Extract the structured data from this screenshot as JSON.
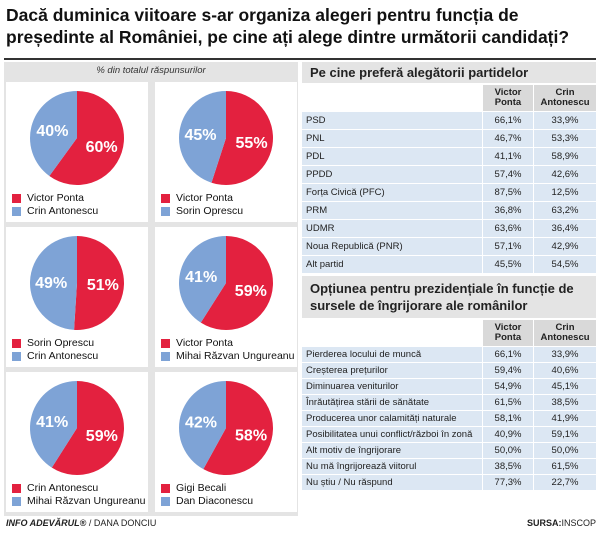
{
  "title": "Dacă duminica viitoare s-ar organiza alegeri pentru funcția de președinte al României, pe cine ați alege dintre următorii candidați?",
  "subtitle": "% din totalul răspunsurilor",
  "chart_data": [
    {
      "type": "pie",
      "categories": [
        "Victor Ponta",
        "Crin Antonescu"
      ],
      "values": [
        60,
        40
      ],
      "value_labels": [
        "60%",
        "40%"
      ],
      "colors": [
        "#e3213f",
        "#7ea3d6"
      ]
    },
    {
      "type": "pie",
      "categories": [
        "Victor Ponta",
        "Sorin Oprescu"
      ],
      "values": [
        55,
        45
      ],
      "value_labels": [
        "55%",
        "45%"
      ],
      "colors": [
        "#e3213f",
        "#7ea3d6"
      ]
    },
    {
      "type": "pie",
      "categories": [
        "Sorin Oprescu",
        "Crin Antonescu"
      ],
      "values": [
        51,
        49
      ],
      "value_labels": [
        "51%",
        "49%"
      ],
      "colors": [
        "#e3213f",
        "#7ea3d6"
      ]
    },
    {
      "type": "pie",
      "categories": [
        "Victor Ponta",
        "Mihai Răzvan Ungureanu"
      ],
      "values": [
        59,
        41
      ],
      "value_labels": [
        "59%",
        "41%"
      ],
      "colors": [
        "#e3213f",
        "#7ea3d6"
      ]
    },
    {
      "type": "pie",
      "categories": [
        "Crin Antonescu",
        "Mihai Răzvan Ungureanu"
      ],
      "values": [
        59,
        41
      ],
      "value_labels": [
        "59%",
        "41%"
      ],
      "colors": [
        "#e3213f",
        "#7ea3d6"
      ]
    },
    {
      "type": "pie",
      "categories": [
        "Gigi Becali",
        "Dan Diaconescu"
      ],
      "values": [
        58,
        42
      ],
      "value_labels": [
        "58%",
        "42%"
      ],
      "colors": [
        "#e3213f",
        "#7ea3d6"
      ]
    }
  ],
  "tables": [
    {
      "title": "Pe cine preferă alegătorii partidelor",
      "columns": [
        "Victor Ponta",
        "Crin Antonescu"
      ],
      "rows": [
        [
          "PSD",
          "66,1%",
          "33,9%"
        ],
        [
          "PNL",
          "46,7%",
          "53,3%"
        ],
        [
          "PDL",
          "41,1%",
          "58,9%"
        ],
        [
          "PPDD",
          "57,4%",
          "42,6%"
        ],
        [
          "Forța Civică (PFC)",
          "87,5%",
          "12,5%"
        ],
        [
          "PRM",
          "36,8%",
          "63,2%"
        ],
        [
          "UDMR",
          "63,6%",
          "36,4%"
        ],
        [
          "Noua Republică (PNR)",
          "57,1%",
          "42,9%"
        ],
        [
          "Alt partid",
          "45,5%",
          "54,5%"
        ]
      ]
    },
    {
      "title": "Opțiunea pentru prezidențiale în funcție de sursele de îngrijorare ale românilor",
      "columns": [
        "Victor Ponta",
        "Crin Antonescu"
      ],
      "rows": [
        [
          "Pierderea locului de muncă",
          "66,1%",
          "33,9%"
        ],
        [
          "Creșterea prețurilor",
          "59,4%",
          "40,6%"
        ],
        [
          "Diminuarea veniturilor",
          "54,9%",
          "45,1%"
        ],
        [
          "Înrăutățirea stării de sănătate",
          "61,5%",
          "38,5%"
        ],
        [
          "Producerea unor calamități naturale",
          "58,1%",
          "41,9%"
        ],
        [
          "Posibilitatea unui conflict/război în zonă",
          "40,9%",
          "59,1%"
        ],
        [
          "Alt motiv de îngrijorare",
          "50,0%",
          "50,0%"
        ],
        [
          "Nu mă îngrijorează viitorul",
          "38,5%",
          "61,5%"
        ],
        [
          "Nu știu / Nu răspund",
          "77,3%",
          "22,7%"
        ]
      ]
    }
  ],
  "footer": {
    "brand": "INFO ADEVĂRUL®",
    "author": "/ DANA DONCIU",
    "source_label": "SURSA:",
    "source": "INSCOP"
  }
}
